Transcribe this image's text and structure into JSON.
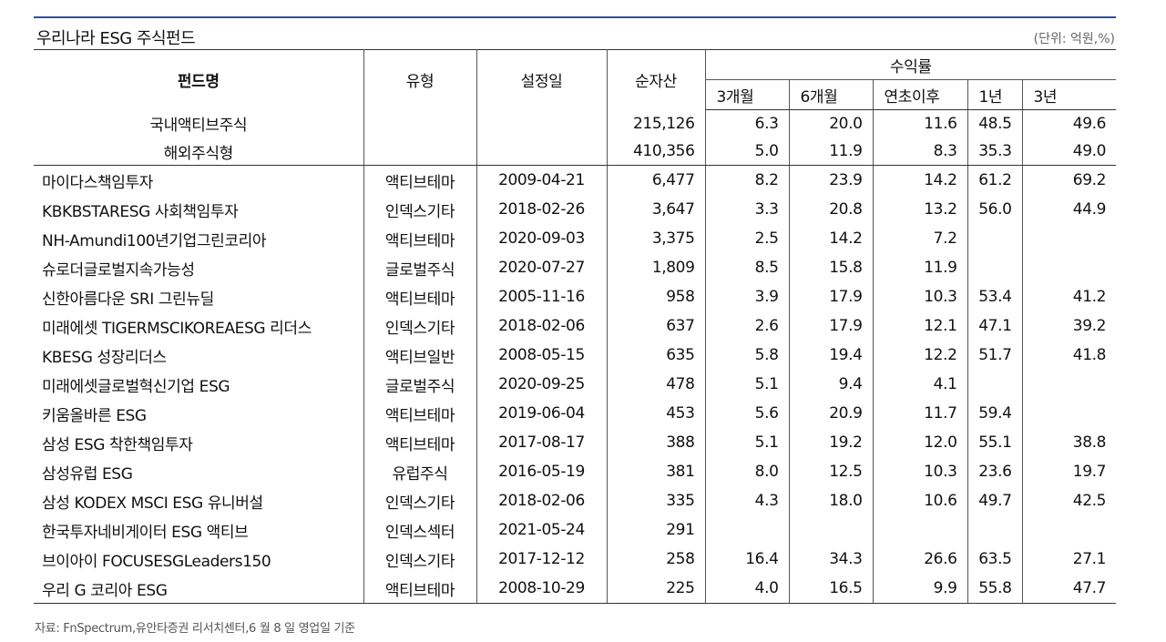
{
  "title": "우리나라 ESG 주식펀드",
  "unit": "(단위: 억원,%)",
  "headers": {
    "fund": "펀드명",
    "type": "유형",
    "date": "설정일",
    "assets": "순자산",
    "return": "수익률",
    "m3": "3개월",
    "m6": "6개월",
    "ytd": "연초이후",
    "y1": "1년",
    "y3": "3년"
  },
  "summary": [
    {
      "name": "국내액티브주식",
      "assets": "215,126",
      "m3": "6.3",
      "m6": "20.0",
      "ytd": "11.6",
      "y1": "48.5",
      "y3": "49.6"
    },
    {
      "name": "해외주식형",
      "assets": "410,356",
      "m3": "5.0",
      "m6": "11.9",
      "ytd": "8.3",
      "y1": "35.3",
      "y3": "49.0"
    }
  ],
  "rows": [
    {
      "name": "마이다스책임투자",
      "type": "액티브테마",
      "date": "2009-04-21",
      "assets": "6,477",
      "m3": "8.2",
      "m6": "23.9",
      "ytd": "14.2",
      "y1": "61.2",
      "y3": "69.2"
    },
    {
      "name": "KBKBSTARESG 사회책임투자",
      "type": "인덱스기타",
      "date": "2018-02-26",
      "assets": "3,647",
      "m3": "3.3",
      "m6": "20.8",
      "ytd": "13.2",
      "y1": "56.0",
      "y3": "44.9"
    },
    {
      "name": "NH-Amundi100년기업그린코리아",
      "type": "액티브테마",
      "date": "2020-09-03",
      "assets": "3,375",
      "m3": "2.5",
      "m6": "14.2",
      "ytd": "7.2",
      "y1": "",
      "y3": ""
    },
    {
      "name": "슈로더글로벌지속가능성",
      "type": "글로벌주식",
      "date": "2020-07-27",
      "assets": "1,809",
      "m3": "8.5",
      "m6": "15.8",
      "ytd": "11.9",
      "y1": "",
      "y3": ""
    },
    {
      "name": "신한아름다운 SRI 그린뉴딜",
      "type": "액티브테마",
      "date": "2005-11-16",
      "assets": "958",
      "m3": "3.9",
      "m6": "17.9",
      "ytd": "10.3",
      "y1": "53.4",
      "y3": "41.2"
    },
    {
      "name": "미래에셋 TIGERMSCIKOREAESG 리더스",
      "type": "인덱스기타",
      "date": "2018-02-06",
      "assets": "637",
      "m3": "2.6",
      "m6": "17.9",
      "ytd": "12.1",
      "y1": "47.1",
      "y3": "39.2"
    },
    {
      "name": "KBESG 성장리더스",
      "type": "액티브일반",
      "date": "2008-05-15",
      "assets": "635",
      "m3": "5.8",
      "m6": "19.4",
      "ytd": "12.2",
      "y1": "51.7",
      "y3": "41.8"
    },
    {
      "name": "미래에셋글로벌혁신기업 ESG",
      "type": "글로벌주식",
      "date": "2020-09-25",
      "assets": "478",
      "m3": "5.1",
      "m6": "9.4",
      "ytd": "4.1",
      "y1": "",
      "y3": ""
    },
    {
      "name": "키움올바른 ESG",
      "type": "액티브테마",
      "date": "2019-06-04",
      "assets": "453",
      "m3": "5.6",
      "m6": "20.9",
      "ytd": "11.7",
      "y1": "59.4",
      "y3": ""
    },
    {
      "name": "삼성 ESG 착한책임투자",
      "type": "액티브테마",
      "date": "2017-08-17",
      "assets": "388",
      "m3": "5.1",
      "m6": "19.2",
      "ytd": "12.0",
      "y1": "55.1",
      "y3": "38.8"
    },
    {
      "name": "삼성유럽 ESG",
      "type": "유럽주식",
      "date": "2016-05-19",
      "assets": "381",
      "m3": "8.0",
      "m6": "12.5",
      "ytd": "10.3",
      "y1": "23.6",
      "y3": "19.7"
    },
    {
      "name": "삼성 KODEX MSCI ESG 유니버설",
      "type": "인덱스기타",
      "date": "2018-02-06",
      "assets": "335",
      "m3": "4.3",
      "m6": "18.0",
      "ytd": "10.6",
      "y1": "49.7",
      "y3": "42.5"
    },
    {
      "name": "한국투자네비게이터 ESG 액티브",
      "type": "인덱스섹터",
      "date": "2021-05-24",
      "assets": "291",
      "m3": "",
      "m6": "",
      "ytd": "",
      "y1": "",
      "y3": ""
    },
    {
      "name": "브이아이 FOCUSESGLeaders150",
      "type": "인덱스기타",
      "date": "2017-12-12",
      "assets": "258",
      "m3": "16.4",
      "m6": "34.3",
      "ytd": "26.6",
      "y1": "63.5",
      "y3": "27.1"
    },
    {
      "name": "우리 G 코리아 ESG",
      "type": "액티브테마",
      "date": "2008-10-29",
      "assets": "225",
      "m3": "4.0",
      "m6": "16.5",
      "ytd": "9.9",
      "y1": "55.8",
      "y3": "47.7"
    }
  ],
  "source": "자료: FnSpectrum,유안타증권 리서치센터,6 월 8 일 영업일 기준"
}
